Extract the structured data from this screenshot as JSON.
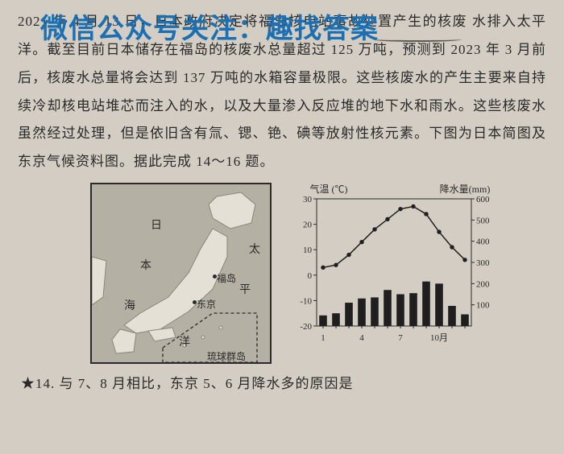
{
  "watermark": "微信公众号关注：趣找答案",
  "paragraph_line1_partial": "2021 年 4 月 13 日，日本政府决定将福岛核电站事故处置产生的核废",
  "paragraph_line2_partial": "水排入太平洋。截至目前日本储存在福岛的核废水总量超过 125 万吨，预测到 2023",
  "paragraph_rest": "年 3 月前后，核废水总量将会达到 137 万吨的水箱容量极限。这些核废水的产生主要来自持续冷却核电站堆芯而注入的水，以及大量渗入反应堆的地下水和雨水。这些核废水虽然经过处理，但是依旧含有氚、锶、铯、碘等放射性核元素。下图为日本简图及东京气候资料图。据此完成 14～16 题。",
  "map": {
    "labels": {
      "riben": "日",
      "ben": "本",
      "hai": "海",
      "tai": "太",
      "ping": "平",
      "yang": "洋",
      "fukushima": "福岛",
      "tokyo": "东京",
      "ryukyu": "琉球群岛"
    },
    "land_color": "#e4e0d5",
    "sea_color": "#b5b0a4"
  },
  "chart": {
    "left_title": "气温 (℃)",
    "right_title": "降水量(mm)",
    "x_ticks": [
      "1",
      "4",
      "7",
      "10月"
    ],
    "temp_axis": {
      "min": -20,
      "max": 30,
      "step": 10,
      "ticks": [
        -20,
        -10,
        0,
        10,
        20,
        30
      ]
    },
    "precip_axis": {
      "min": 0,
      "max": 600,
      "step": 100,
      "ticks": [
        100,
        200,
        300,
        400,
        500,
        600
      ]
    },
    "months": [
      1,
      2,
      3,
      4,
      5,
      6,
      7,
      8,
      9,
      10,
      11,
      12
    ],
    "temp_values": [
      3,
      4,
      8,
      13,
      18,
      22,
      26,
      27,
      24,
      17,
      11,
      6
    ],
    "precip_values": [
      50,
      60,
      110,
      130,
      135,
      170,
      150,
      155,
      210,
      200,
      95,
      55
    ],
    "bar_color": "#1f1f1f",
    "line_color": "#1f1f1f",
    "axis_color": "#2a2a2a",
    "font_size": 12
  },
  "question": "★14. 与 7、8 月相比，东京 5、6 月降水多的原因是",
  "colors": {
    "page_bg": "#d3cdc3",
    "text": "#2a2a2a",
    "watermark": "#1b6fb3"
  }
}
